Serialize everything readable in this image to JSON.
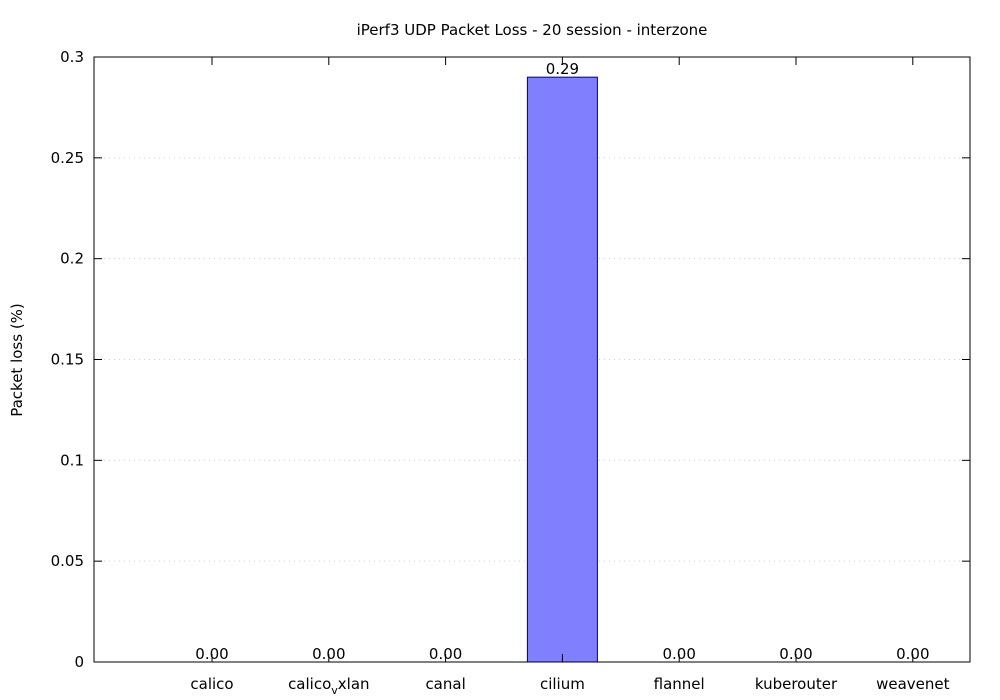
{
  "chart_data": {
    "type": "bar",
    "title": "iPerf3 UDP Packet Loss - 20 session - interzone",
    "xlabel": "",
    "ylabel": "Packet loss (%)",
    "ylim": [
      0,
      0.3
    ],
    "yticks": [
      0,
      0.05,
      0.1,
      0.15,
      0.2,
      0.25,
      0.3
    ],
    "ytick_labels": [
      "0",
      "0.05",
      "0.1",
      "0.15",
      "0.2",
      "0.25",
      "0.3"
    ],
    "categories": [
      {
        "label": "calico"
      },
      {
        "label": "calico",
        "sub": "v",
        "rest": "xlan"
      },
      {
        "label": "canal"
      },
      {
        "label": "cilium"
      },
      {
        "label": "flannel"
      },
      {
        "label": "kuberouter"
      },
      {
        "label": "weavenet"
      }
    ],
    "values": [
      0.0,
      0.0,
      0.0,
      0.29,
      0.0,
      0.0,
      0.0
    ],
    "data_labels": [
      "0.00",
      "0.00",
      "0.00",
      "0.29",
      "0.00",
      "0.00",
      "0.00"
    ],
    "grid": "horizontal dotted",
    "bar_color": "#8080ff",
    "bar_edge_color": "#00007f"
  }
}
